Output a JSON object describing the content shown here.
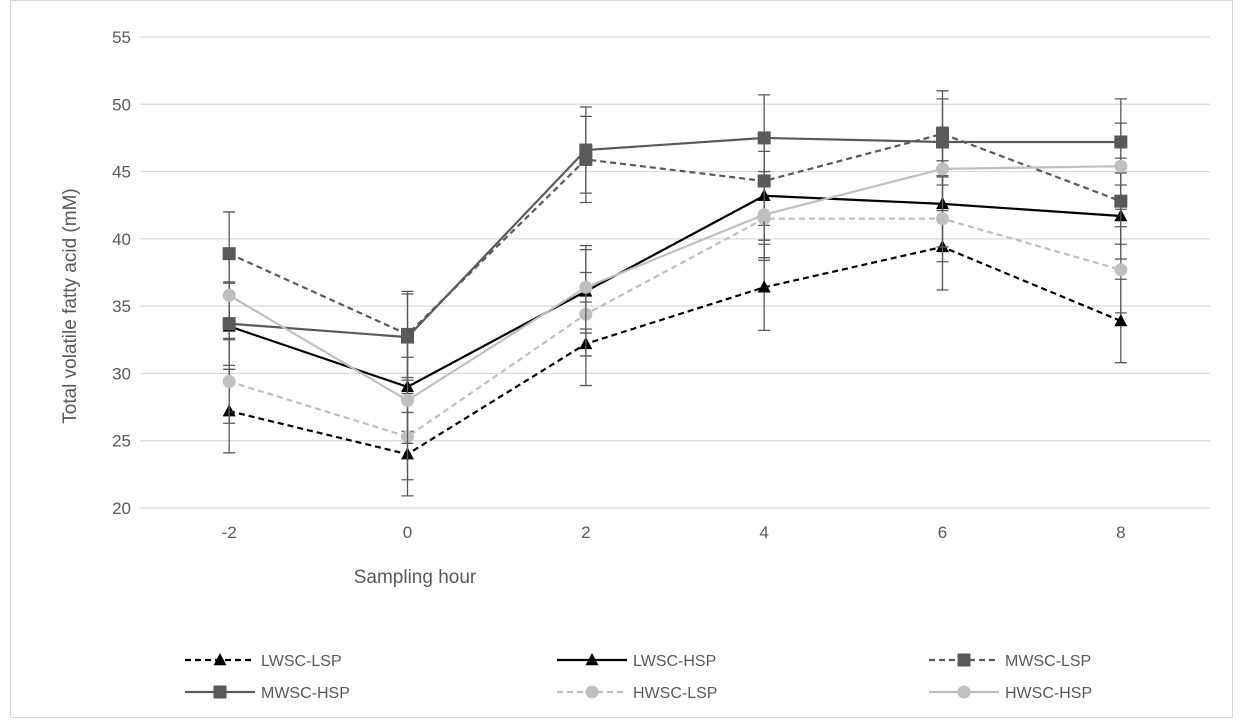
{
  "chart_data": {
    "type": "line",
    "title": "",
    "xlabel": "Sampling hour",
    "ylabel": "Total volatile fatty acid (mM)",
    "categories": [
      "-2",
      "0",
      "2",
      "4",
      "6",
      "8"
    ],
    "ylim": [
      20,
      55
    ],
    "yticks": [
      "20",
      "25",
      "30",
      "35",
      "40",
      "45",
      "50",
      "55"
    ],
    "grid": "horizontal",
    "legend_position": "bottom",
    "series": [
      {
        "name": "LWSC-LSP",
        "values": [
          27.2,
          24.0,
          32.2,
          36.4,
          39.4,
          33.9
        ],
        "error": [
          3.1,
          3.1,
          3.1,
          3.2,
          3.2,
          3.1
        ],
        "color": "#000000",
        "dash": "dashed",
        "marker": "triangle"
      },
      {
        "name": "LWSC-HSP",
        "values": [
          33.5,
          29.0,
          36.1,
          43.2,
          42.6,
          41.7
        ],
        "error": [
          3.2,
          3.3,
          3.1,
          3.3,
          3.2,
          3.2
        ],
        "color": "#000000",
        "dash": "solid",
        "marker": "triangle"
      },
      {
        "name": "MWSC-LSP",
        "values": [
          38.9,
          32.9,
          45.9,
          44.3,
          47.8,
          42.8
        ],
        "error": [
          3.1,
          3.2,
          3.2,
          3.3,
          3.2,
          3.2
        ],
        "color": "#595959",
        "dash": "dashed",
        "marker": "square"
      },
      {
        "name": "MWSC-HSP",
        "values": [
          33.7,
          32.7,
          46.6,
          47.5,
          47.2,
          47.2
        ],
        "error": [
          3.1,
          3.2,
          3.2,
          3.2,
          3.2,
          3.2
        ],
        "color": "#595959",
        "dash": "solid",
        "marker": "square"
      },
      {
        "name": "HWSC-LSP",
        "values": [
          29.4,
          25.3,
          34.4,
          41.5,
          41.5,
          37.7
        ],
        "error": [
          3.1,
          3.2,
          3.1,
          3.1,
          3.2,
          3.2
        ],
        "color": "#bfbfbf",
        "dash": "dashed",
        "marker": "circle"
      },
      {
        "name": "HWSC-HSP",
        "values": [
          35.8,
          28.0,
          36.4,
          41.8,
          45.2,
          45.4
        ],
        "error": [
          3.2,
          3.2,
          3.1,
          3.2,
          3.1,
          3.2
        ],
        "color": "#bfbfbf",
        "dash": "solid",
        "marker": "circle"
      }
    ]
  }
}
